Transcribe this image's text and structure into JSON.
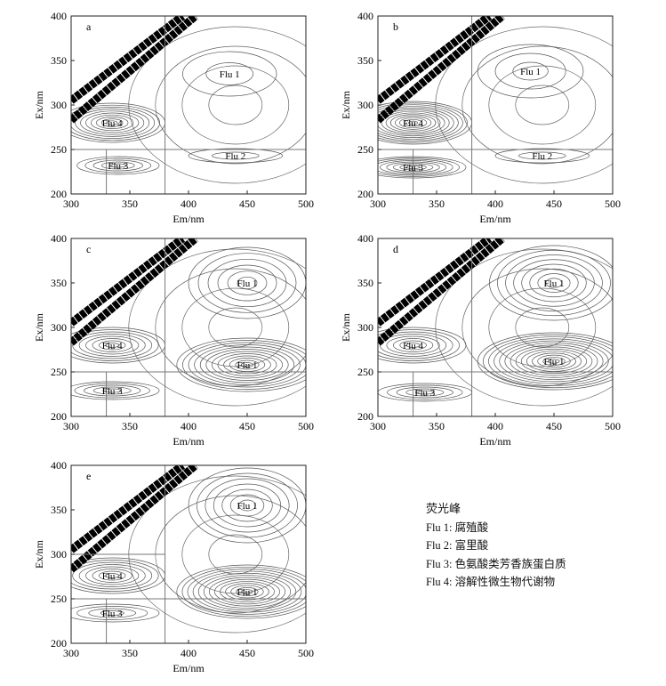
{
  "legend": {
    "title": "荧光峰",
    "items": [
      "Flu 1: 腐殖酸",
      "Flu 2: 富里酸",
      "Flu 3: 色氨酸类芳香族蛋白质",
      "Flu 4:  溶解性微生物代谢物"
    ]
  },
  "chart_data": [
    {
      "panel": "a",
      "type": "contour",
      "xlabel": "Em/nm",
      "ylabel": "Ex/nm",
      "xlim": [
        300,
        500
      ],
      "ylim": [
        200,
        400
      ],
      "xticks": [
        300,
        350,
        400,
        450,
        500
      ],
      "yticks": [
        200,
        250,
        300,
        350,
        400
      ],
      "region_lines": {
        "em": [
          330,
          380
        ],
        "ex": [
          250
        ]
      },
      "peaks": [
        {
          "label": "Flu 1",
          "em": 435,
          "ex": 335,
          "levels": 2,
          "spread": [
            40,
            25
          ]
        },
        {
          "label": "Flu 4",
          "em": 335,
          "ex": 280,
          "levels": 10,
          "spread": [
            45,
            22
          ]
        },
        {
          "label": "Flu 3",
          "em": 340,
          "ex": 232,
          "levels": 5,
          "spread": [
            35,
            10
          ]
        },
        {
          "label": "Flu 2",
          "em": 440,
          "ex": 243,
          "levels": 2,
          "spread": [
            40,
            8
          ]
        }
      ]
    },
    {
      "panel": "b",
      "type": "contour",
      "xlabel": "Em/nm",
      "ylabel": "Ex/nm",
      "xlim": [
        300,
        500
      ],
      "ylim": [
        200,
        400
      ],
      "xticks": [
        300,
        350,
        400,
        450,
        500
      ],
      "yticks": [
        200,
        250,
        300,
        350,
        400
      ],
      "region_lines": {
        "em": [
          330,
          380
        ],
        "ex": [
          250
        ]
      },
      "peaks": [
        {
          "label": "Flu 1",
          "em": 430,
          "ex": 338,
          "levels": 3,
          "spread": [
            45,
            30
          ]
        },
        {
          "label": "Flu 4",
          "em": 330,
          "ex": 280,
          "levels": 13,
          "spread": [
            50,
            24
          ]
        },
        {
          "label": "Flu 3",
          "em": 330,
          "ex": 230,
          "levels": 8,
          "spread": [
            45,
            12
          ]
        },
        {
          "label": "Flu 2",
          "em": 440,
          "ex": 243,
          "levels": 2,
          "spread": [
            40,
            8
          ]
        }
      ]
    },
    {
      "panel": "c",
      "type": "contour",
      "xlabel": "Em/nm",
      "ylabel": "Ex/nm",
      "xlim": [
        300,
        500
      ],
      "ylim": [
        200,
        400
      ],
      "xticks": [
        300,
        350,
        400,
        450,
        500
      ],
      "yticks": [
        200,
        250,
        300,
        350,
        400
      ],
      "region_lines": {
        "em": [
          330,
          380
        ],
        "ex": [
          250
        ]
      },
      "peaks": [
        {
          "label": "Flu 1",
          "em": 450,
          "ex": 350,
          "levels": 6,
          "spread": [
            50,
            40
          ]
        },
        {
          "label": "Flu 4",
          "em": 335,
          "ex": 280,
          "levels": 8,
          "spread": [
            45,
            20
          ]
        },
        {
          "label": "Flu 1",
          "em": 450,
          "ex": 258,
          "levels": 12,
          "spread": [
            60,
            30
          ]
        },
        {
          "label": "Flu 3",
          "em": 335,
          "ex": 229,
          "levels": 5,
          "spread": [
            40,
            10
          ]
        }
      ]
    },
    {
      "panel": "d",
      "type": "contour",
      "xlabel": "Em/nm",
      "ylabel": "Ex/nm",
      "xlim": [
        300,
        500
      ],
      "ylim": [
        200,
        400
      ],
      "xticks": [
        300,
        350,
        400,
        450,
        500
      ],
      "yticks": [
        200,
        250,
        300,
        350,
        400
      ],
      "region_lines": {
        "em": [
          330,
          380
        ],
        "ex": [
          250
        ]
      },
      "peaks": [
        {
          "label": "Flu 1",
          "em": 450,
          "ex": 350,
          "levels": 8,
          "spread": [
            55,
            42
          ]
        },
        {
          "label": "Flu 4",
          "em": 330,
          "ex": 280,
          "levels": 8,
          "spread": [
            45,
            20
          ]
        },
        {
          "label": "Flu 1",
          "em": 450,
          "ex": 262,
          "levels": 14,
          "spread": [
            65,
            32
          ]
        },
        {
          "label": "Flu 3",
          "em": 340,
          "ex": 227,
          "levels": 5,
          "spread": [
            40,
            10
          ]
        }
      ]
    },
    {
      "panel": "e",
      "type": "contour",
      "xlabel": "Em/nm",
      "ylabel": "Ex/nm",
      "xlim": [
        300,
        500
      ],
      "ylim": [
        200,
        400
      ],
      "xticks": [
        300,
        350,
        400,
        450,
        500
      ],
      "yticks": [
        200,
        250,
        300,
        350,
        400
      ],
      "region_lines": {
        "em": [
          330,
          380
        ],
        "ex": [
          250,
          300
        ]
      },
      "peaks": [
        {
          "label": "Flu 1",
          "em": 450,
          "ex": 355,
          "levels": 7,
          "spread": [
            50,
            42
          ]
        },
        {
          "label": "Flu 4",
          "em": 335,
          "ex": 276,
          "levels": 8,
          "spread": [
            45,
            20
          ]
        },
        {
          "label": "Flu 1",
          "em": 450,
          "ex": 258,
          "levels": 13,
          "spread": [
            60,
            30
          ]
        },
        {
          "label": "Flu 3",
          "em": 335,
          "ex": 234,
          "levels": 4,
          "spread": [
            40,
            10
          ]
        }
      ]
    }
  ]
}
